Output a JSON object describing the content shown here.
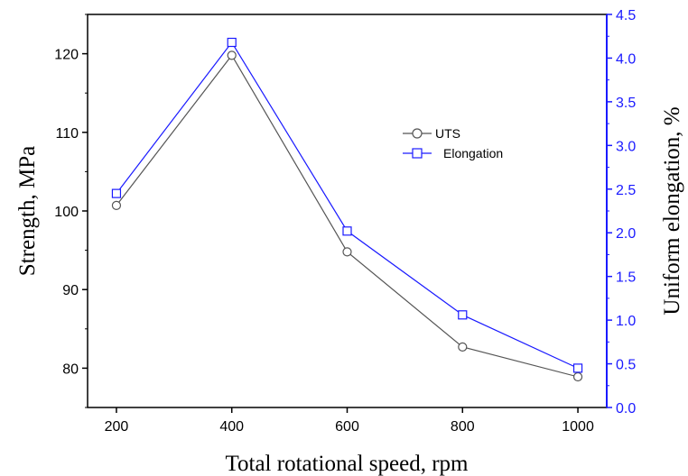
{
  "chart_data": {
    "type": "line",
    "x": [
      200,
      400,
      600,
      800,
      1000
    ],
    "xlabel": "Total rotational speed, rpm",
    "xlim": [
      150,
      1050
    ],
    "xticks": [
      200,
      400,
      600,
      800,
      1000
    ],
    "left_axis": {
      "label": "Strength, MPa",
      "ylim": [
        75,
        125
      ],
      "ticks": [
        80,
        90,
        100,
        110,
        120
      ]
    },
    "right_axis": {
      "label": "Uniform elongation, %",
      "ylim": [
        0.0,
        4.5
      ],
      "ticks": [
        "0.0",
        "0.5",
        "1.0",
        "1.5",
        "2.0",
        "2.5",
        "3.0",
        "3.5",
        "4.0",
        "4.5"
      ],
      "color": "#1a1aff"
    },
    "series": [
      {
        "name": "UTS",
        "axis": "left",
        "values": [
          100.7,
          119.8,
          94.8,
          82.7,
          78.9
        ],
        "color": "#555555",
        "marker": "circle"
      },
      {
        "name": "Elongation",
        "axis": "right",
        "values": [
          2.45,
          4.18,
          2.02,
          1.06,
          0.45
        ],
        "color": "#1a1aff",
        "marker": "square"
      }
    ],
    "legend_position": "upper-right-center",
    "grid": false
  }
}
